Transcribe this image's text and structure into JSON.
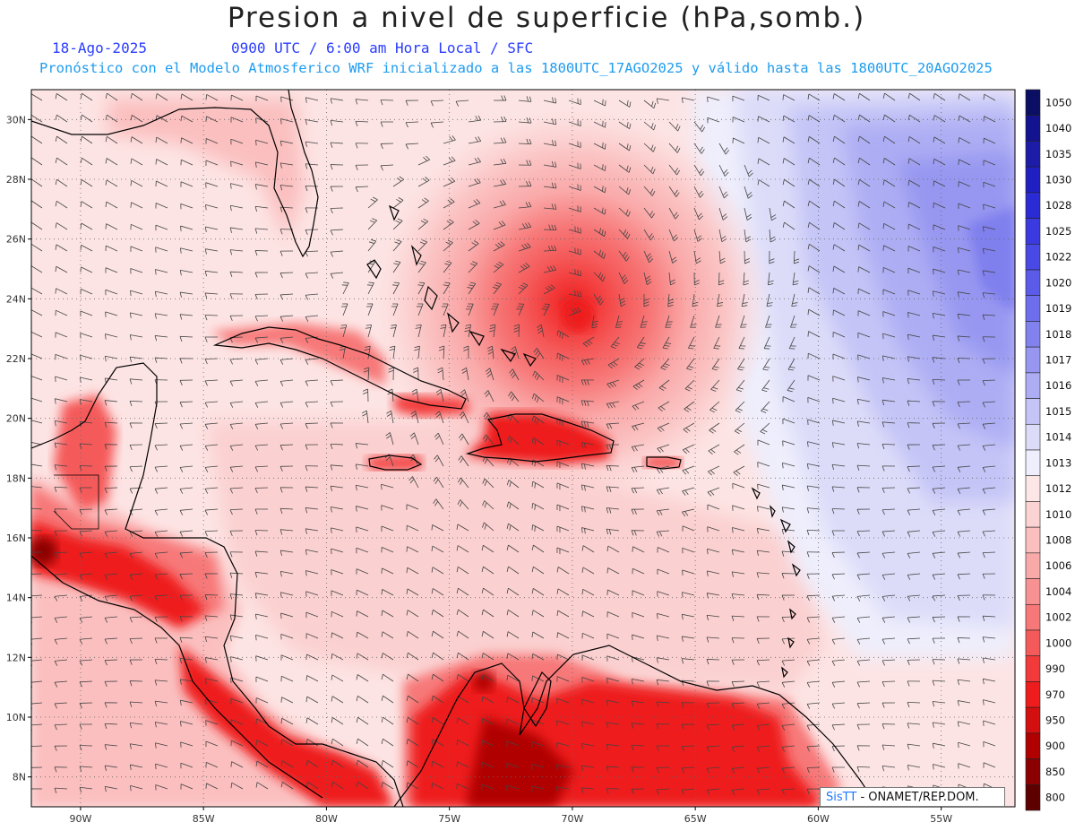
{
  "title": "Presion a nivel de superficie (hPa,somb.)",
  "subtitle_date": "18-Ago-2025",
  "subtitle_time": "0900 UTC / 6:00 am Hora Local / SFC",
  "subtitle_model": "Pronóstico con el Modelo Atmosferico WRF inicializado a las 1800UTC_17AGO2025 y válido hasta las  1800UTC_20AGO2025",
  "credit": {
    "logo": "SisTT",
    "org": "- ONAMET/REP.DOM."
  },
  "colors": {
    "low_pressure": "#ff2020",
    "high_pressure": "#7f7ff0",
    "background": "#fde4e4",
    "coast": "#000000"
  },
  "map_data": {
    "extent": {
      "lon": [
        -92,
        -52
      ],
      "lat": [
        7,
        31
      ]
    },
    "lat_ticks": [
      {
        "value": 30,
        "label": "30N"
      },
      {
        "value": 28,
        "label": "28N"
      },
      {
        "value": 26,
        "label": "26N"
      },
      {
        "value": 24,
        "label": "24N"
      },
      {
        "value": 22,
        "label": "22N"
      },
      {
        "value": 20,
        "label": "20N"
      },
      {
        "value": 18,
        "label": "18N"
      },
      {
        "value": 16,
        "label": "16N"
      },
      {
        "value": 14,
        "label": "14N"
      },
      {
        "value": 12,
        "label": "12N"
      },
      {
        "value": 10,
        "label": "10N"
      },
      {
        "value": 8,
        "label": "8N"
      }
    ],
    "lon_ticks": [
      {
        "value": -90,
        "label": "90W"
      },
      {
        "value": -85,
        "label": "85W"
      },
      {
        "value": -80,
        "label": "80W"
      },
      {
        "value": -75,
        "label": "75W"
      },
      {
        "value": -70,
        "label": "70W"
      },
      {
        "value": -65,
        "label": "65W"
      },
      {
        "value": -60,
        "label": "60W"
      },
      {
        "value": -55,
        "label": "55W"
      }
    ],
    "storm_center": {
      "lon": -70,
      "lat": 23.3
    }
  },
  "colorbar": {
    "labels": [
      "1050",
      "1040",
      "1035",
      "1030",
      "1028",
      "1025",
      "1022",
      "1020",
      "1019",
      "1018",
      "1017",
      "1016",
      "1015",
      "1014",
      "1013",
      "1012",
      "1010",
      "1008",
      "1006",
      "1004",
      "1002",
      "1000",
      "990",
      "970",
      "950",
      "900",
      "850",
      "800"
    ],
    "colors": [
      "#0b0f63",
      "#13138f",
      "#1c1ca8",
      "#1f1fc2",
      "#2b2bd6",
      "#3a3ae0",
      "#4949e6",
      "#5b5be9",
      "#6e6eec",
      "#8282ef",
      "#9797f1",
      "#adadf4",
      "#c4c4f7",
      "#dcdcf9",
      "#eeeefc",
      "#fde6e6",
      "#fcd3d3",
      "#fbbfbf",
      "#faa9a9",
      "#f89292",
      "#f77878",
      "#f55a5a",
      "#f33a3a",
      "#ee1c1c",
      "#d40f0f",
      "#b00000",
      "#8b0000",
      "#5e0000"
    ]
  }
}
